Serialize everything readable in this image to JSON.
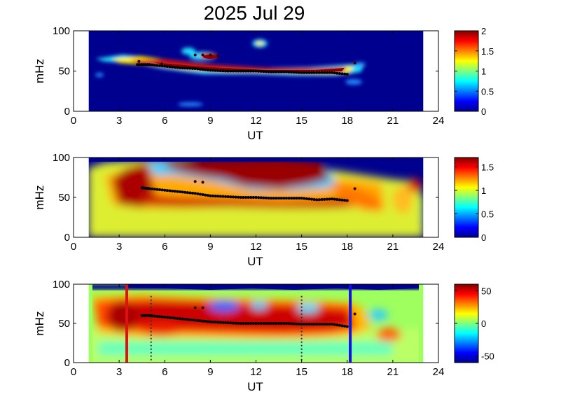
{
  "title": "2025 Jul 29",
  "chart_data": [
    {
      "type": "heatmap",
      "xlabel": "UT",
      "ylabel": "mHz",
      "xlim": [
        0,
        24
      ],
      "ylim": [
        0,
        100
      ],
      "x_ticks": [
        "0",
        "3",
        "6",
        "9",
        "12",
        "15",
        "18",
        "21",
        "24"
      ],
      "y_ticks": [
        "0",
        "50",
        "100"
      ],
      "data_range_ut": [
        1,
        23
      ],
      "colorbar": {
        "range": [
          0,
          2
        ],
        "ticks": [
          "0",
          "0.5",
          "1",
          "1.5",
          "2"
        ]
      },
      "trace_label": "peak frequency trace (black dots)",
      "peak_trace": [
        [
          4.2,
          58
        ],
        [
          5,
          58
        ],
        [
          6,
          56
        ],
        [
          7,
          54
        ],
        [
          8,
          53
        ],
        [
          9,
          51
        ],
        [
          10,
          50
        ],
        [
          11,
          50
        ],
        [
          12,
          50
        ],
        [
          13,
          49
        ],
        [
          14,
          49
        ],
        [
          15,
          48
        ],
        [
          16,
          48
        ],
        [
          17,
          48
        ],
        [
          18,
          46
        ]
      ],
      "extra_points": [
        [
          8,
          70
        ],
        [
          8.5,
          70
        ],
        [
          9,
          70
        ],
        [
          9.5,
          69
        ],
        [
          4.3,
          62
        ],
        [
          5.8,
          59
        ],
        [
          18.5,
          60
        ]
      ]
    },
    {
      "type": "heatmap",
      "xlabel": "UT",
      "ylabel": "mHz",
      "xlim": [
        0,
        24
      ],
      "ylim": [
        0,
        100
      ],
      "x_ticks": [
        "0",
        "3",
        "6",
        "9",
        "12",
        "15",
        "18",
        "21",
        "24"
      ],
      "y_ticks": [
        "0",
        "50",
        "100"
      ],
      "data_range_ut": [
        1,
        23
      ],
      "colorbar": {
        "range": [
          0,
          1.7
        ],
        "ticks": [
          "0",
          "0.5",
          "1",
          "1.5"
        ]
      },
      "peak_trace": [
        [
          4.5,
          62
        ],
        [
          5,
          61
        ],
        [
          6,
          59
        ],
        [
          7,
          57
        ],
        [
          8,
          55
        ],
        [
          9,
          52
        ],
        [
          10,
          51
        ],
        [
          11,
          50
        ],
        [
          12,
          50
        ],
        [
          13,
          49
        ],
        [
          14,
          49
        ],
        [
          15,
          49
        ],
        [
          16,
          47
        ],
        [
          17,
          48
        ],
        [
          18,
          46
        ]
      ],
      "extra_points": [
        [
          8,
          70
        ],
        [
          8.5,
          69
        ],
        [
          18.5,
          61
        ]
      ]
    },
    {
      "type": "heatmap",
      "xlabel": "UT",
      "ylabel": "mHz",
      "xlim": [
        0,
        24
      ],
      "ylim": [
        0,
        100
      ],
      "x_ticks": [
        "0",
        "3",
        "6",
        "9",
        "12",
        "15",
        "18",
        "21",
        "24"
      ],
      "y_ticks": [
        "0",
        "50",
        "100"
      ],
      "data_range_ut": [
        1,
        23
      ],
      "colorbar": {
        "range": [
          -60,
          60
        ],
        "ticks": [
          "-50",
          "0",
          "50"
        ]
      },
      "vertical_lines": [
        {
          "x": 3.5,
          "color": "#dd1111",
          "style": "solid"
        },
        {
          "x": 18.2,
          "color": "#1111dd",
          "style": "solid"
        },
        {
          "x": 5.1,
          "color": "#333333",
          "style": "dotted"
        },
        {
          "x": 15,
          "color": "#333333",
          "style": "dotted"
        }
      ],
      "peak_trace": [
        [
          4.5,
          60
        ],
        [
          5,
          60
        ],
        [
          6,
          58
        ],
        [
          7,
          56
        ],
        [
          8,
          54
        ],
        [
          9,
          52
        ],
        [
          10,
          51
        ],
        [
          11,
          50
        ],
        [
          12,
          50
        ],
        [
          13,
          50
        ],
        [
          14,
          50
        ],
        [
          15,
          49
        ],
        [
          16,
          49
        ],
        [
          17,
          49
        ],
        [
          18,
          46
        ]
      ],
      "extra_points": [
        [
          8,
          70
        ],
        [
          8.5,
          70
        ],
        [
          18.5,
          62
        ]
      ]
    }
  ]
}
